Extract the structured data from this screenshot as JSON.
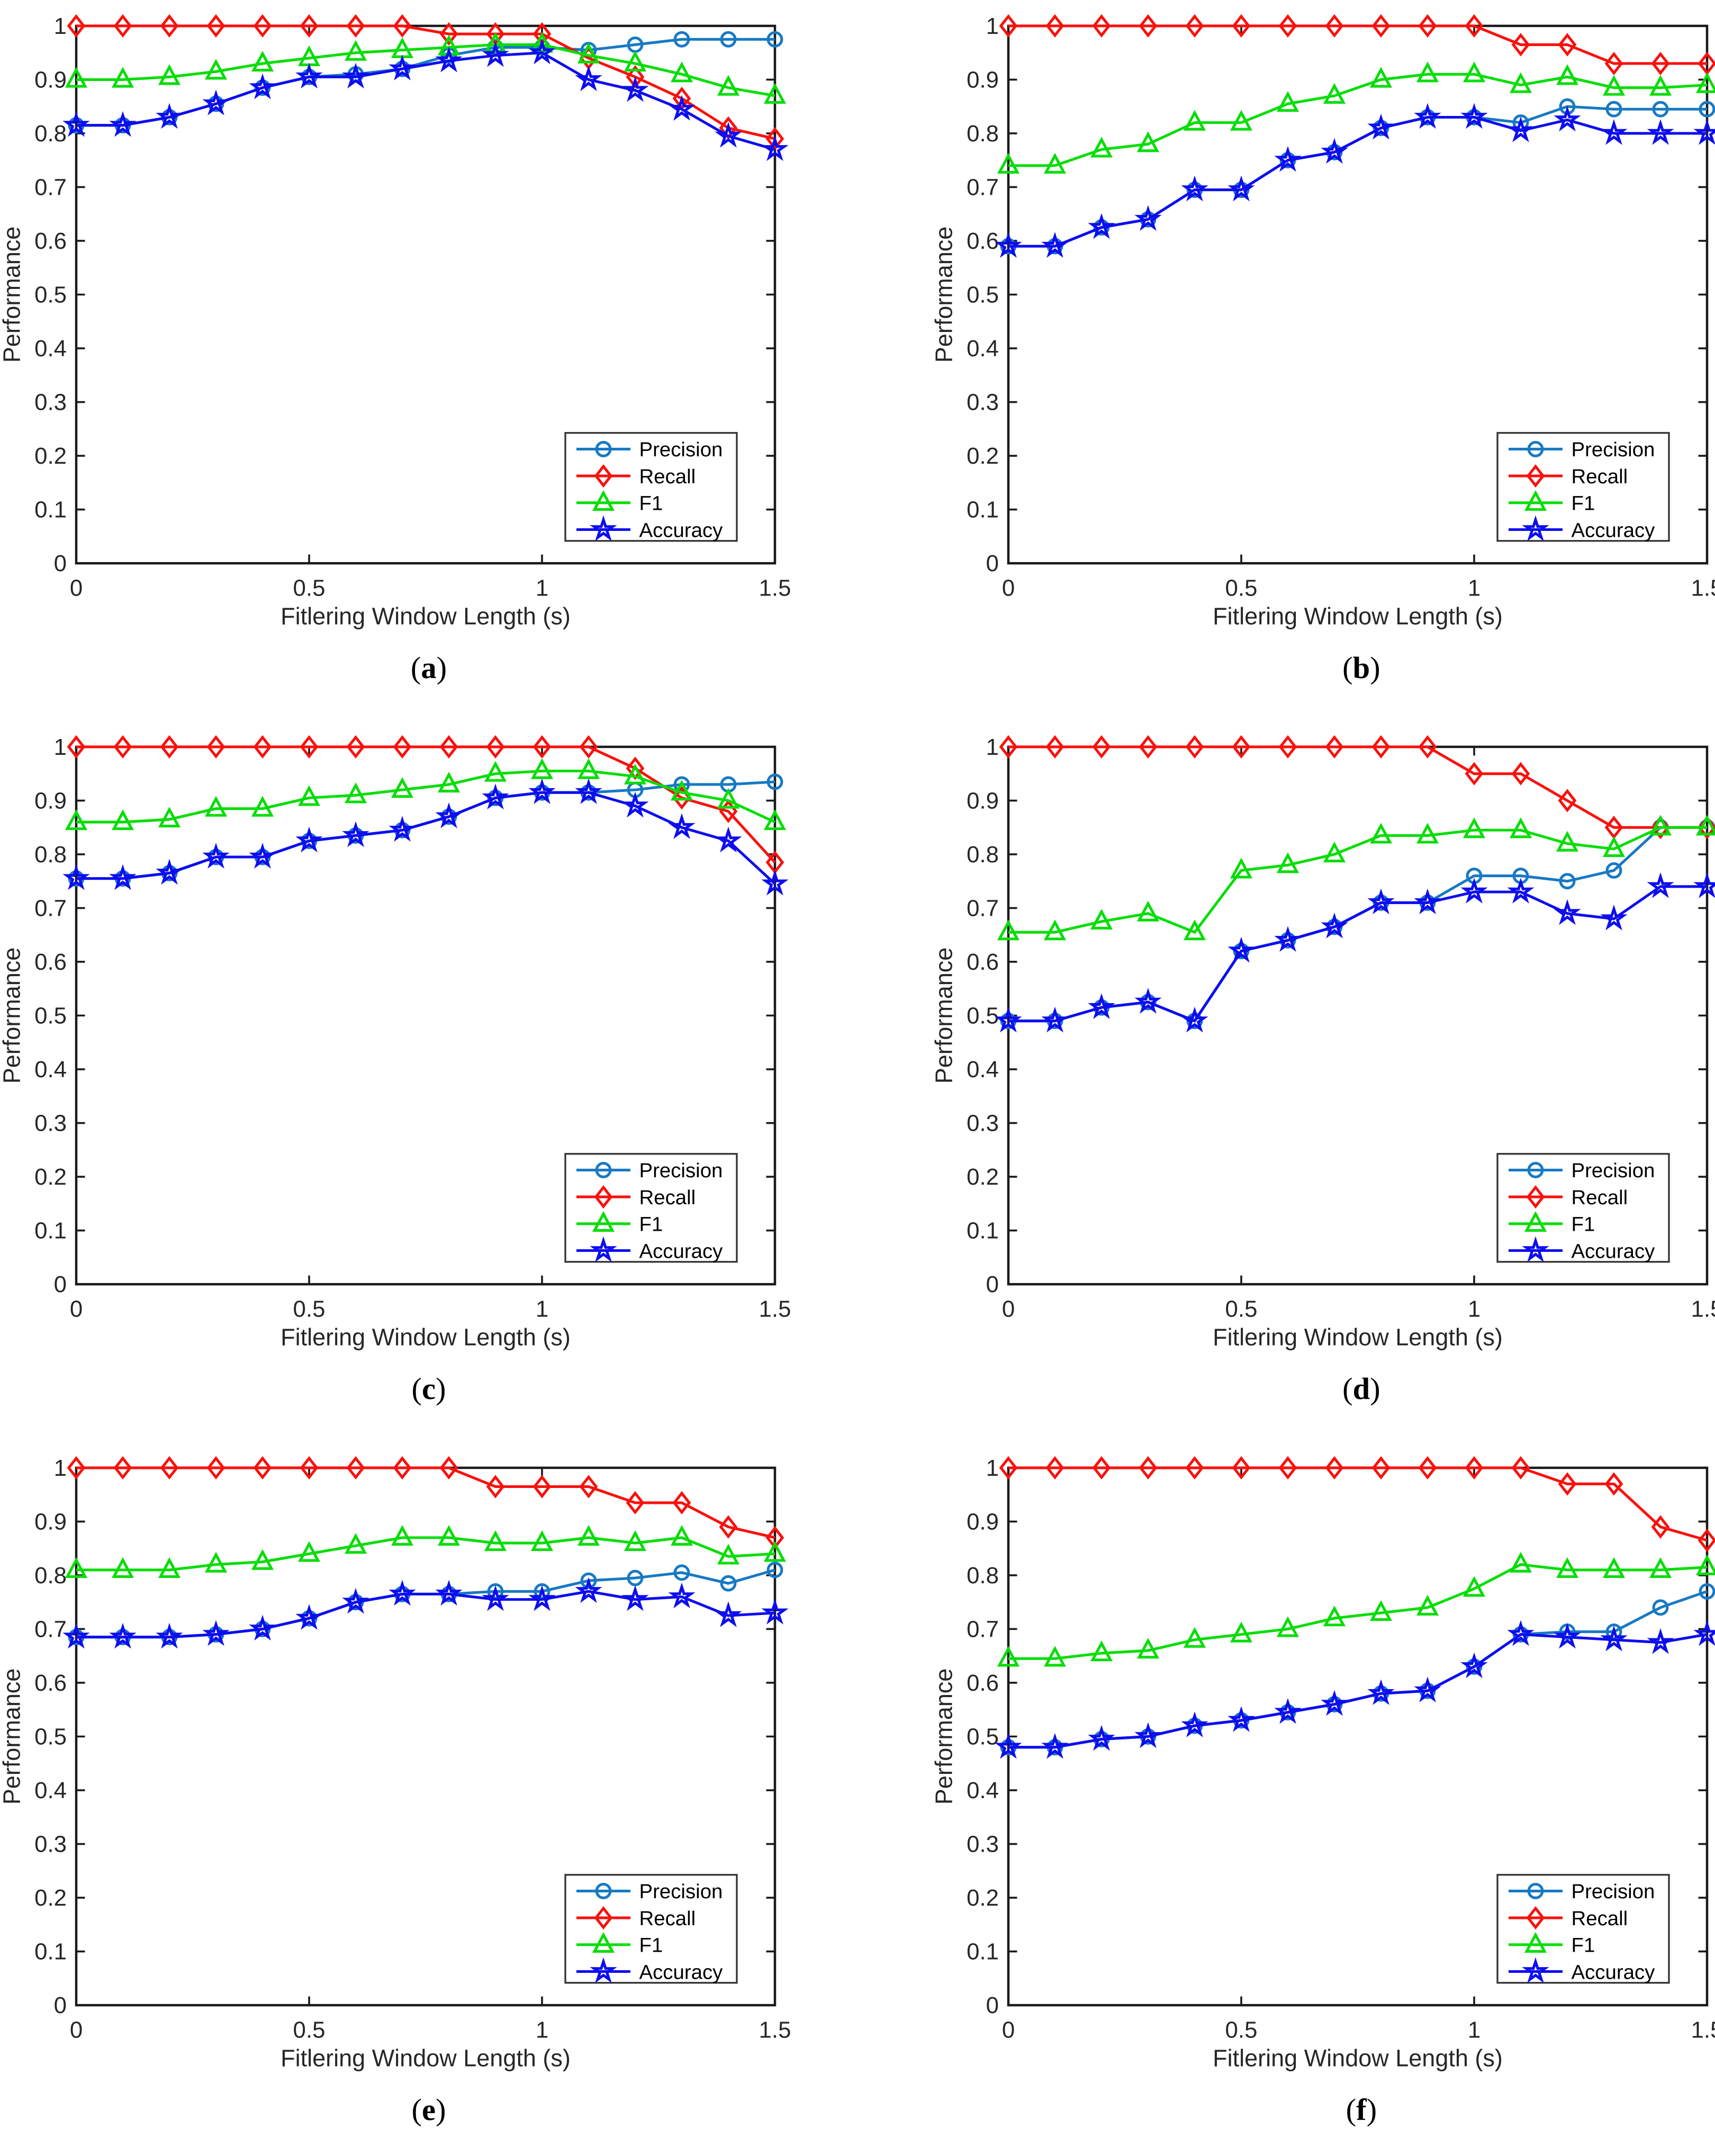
{
  "figure": {
    "background": "#ffffff",
    "axis_color": "#1a1a1a",
    "tick_label_color": "#262626"
  },
  "axes": {
    "xlabel": "Fitlering Window Length (s)",
    "ylabel": "Performance",
    "xlim": [
      0,
      1.5
    ],
    "ylim": [
      0,
      1
    ],
    "x_tick_values": [
      0,
      0.5,
      1,
      1.5
    ],
    "x_tick_labels": [
      "0",
      "0.5",
      "1",
      "1.5"
    ],
    "y_tick_labels": [
      "0",
      "0.1",
      "0.2",
      "0.3",
      "0.4",
      "0.5",
      "0.6",
      "0.7",
      "0.8",
      "0.9",
      "1"
    ],
    "grid": false,
    "legend_position": "bottom-right"
  },
  "series_defs": [
    {
      "name": "Precision",
      "color": "#1779c4",
      "marker": "circle"
    },
    {
      "name": "Recall",
      "color": "#fa100c",
      "marker": "diamond"
    },
    {
      "name": "F1",
      "color": "#06dd06",
      "marker": "triangle"
    },
    {
      "name": "Accuracy",
      "color": "#0d0df0",
      "marker": "star"
    }
  ],
  "chart_data": [
    {
      "type": "line",
      "caption": {
        "open": "(",
        "letter": "a",
        "close": ")"
      },
      "x": [
        0,
        0.1,
        0.2,
        0.3,
        0.4,
        0.5,
        0.6,
        0.7,
        0.8,
        0.9,
        1.0,
        1.1,
        1.2,
        1.3,
        1.4,
        1.5
      ],
      "series": [
        {
          "name": "Precision",
          "values": [
            0.815,
            0.815,
            0.83,
            0.855,
            0.885,
            0.905,
            0.91,
            0.92,
            0.945,
            0.96,
            0.96,
            0.955,
            0.965,
            0.975,
            0.975,
            0.975
          ]
        },
        {
          "name": "Recall",
          "values": [
            1,
            1,
            1,
            1,
            1,
            1,
            1,
            1,
            0.985,
            0.985,
            0.985,
            0.94,
            0.905,
            0.865,
            0.81,
            0.79
          ]
        },
        {
          "name": "F1",
          "values": [
            0.9,
            0.9,
            0.905,
            0.915,
            0.93,
            0.94,
            0.95,
            0.955,
            0.96,
            0.965,
            0.965,
            0.945,
            0.93,
            0.91,
            0.885,
            0.87
          ]
        },
        {
          "name": "Accuracy",
          "values": [
            0.815,
            0.815,
            0.83,
            0.855,
            0.885,
            0.905,
            0.905,
            0.92,
            0.935,
            0.945,
            0.95,
            0.9,
            0.88,
            0.845,
            0.795,
            0.77
          ]
        }
      ]
    },
    {
      "type": "line",
      "caption": {
        "open": "(",
        "letter": "b",
        "close": ")"
      },
      "x": [
        0,
        0.1,
        0.2,
        0.3,
        0.4,
        0.5,
        0.6,
        0.7,
        0.8,
        0.9,
        1.0,
        1.1,
        1.2,
        1.3,
        1.4,
        1.5
      ],
      "series": [
        {
          "name": "Precision",
          "values": [
            0.59,
            0.59,
            0.625,
            0.64,
            0.695,
            0.695,
            0.75,
            0.765,
            0.81,
            0.83,
            0.83,
            0.82,
            0.85,
            0.845,
            0.845,
            0.845
          ]
        },
        {
          "name": "Recall",
          "values": [
            1,
            1,
            1,
            1,
            1,
            1,
            1,
            1,
            1,
            1,
            1,
            0.965,
            0.965,
            0.93,
            0.93,
            0.93
          ]
        },
        {
          "name": "F1",
          "values": [
            0.74,
            0.74,
            0.77,
            0.78,
            0.82,
            0.82,
            0.855,
            0.87,
            0.9,
            0.91,
            0.91,
            0.89,
            0.905,
            0.885,
            0.885,
            0.89
          ]
        },
        {
          "name": "Accuracy",
          "values": [
            0.59,
            0.59,
            0.625,
            0.64,
            0.695,
            0.695,
            0.75,
            0.765,
            0.81,
            0.83,
            0.83,
            0.805,
            0.825,
            0.8,
            0.8,
            0.8
          ]
        }
      ]
    },
    {
      "type": "line",
      "caption": {
        "open": "(",
        "letter": "c",
        "close": ")"
      },
      "x": [
        0,
        0.1,
        0.2,
        0.3,
        0.4,
        0.5,
        0.6,
        0.7,
        0.8,
        0.9,
        1.0,
        1.1,
        1.2,
        1.3,
        1.4,
        1.5
      ],
      "series": [
        {
          "name": "Precision",
          "values": [
            0.755,
            0.755,
            0.765,
            0.795,
            0.795,
            0.825,
            0.835,
            0.845,
            0.87,
            0.905,
            0.915,
            0.915,
            0.92,
            0.93,
            0.93,
            0.935
          ]
        },
        {
          "name": "Recall",
          "values": [
            1,
            1,
            1,
            1,
            1,
            1,
            1,
            1,
            1,
            1,
            1,
            1,
            0.96,
            0.905,
            0.88,
            0.785
          ]
        },
        {
          "name": "F1",
          "values": [
            0.86,
            0.86,
            0.865,
            0.885,
            0.885,
            0.905,
            0.91,
            0.92,
            0.93,
            0.95,
            0.955,
            0.955,
            0.945,
            0.915,
            0.9,
            0.86
          ]
        },
        {
          "name": "Accuracy",
          "values": [
            0.755,
            0.755,
            0.765,
            0.795,
            0.795,
            0.825,
            0.835,
            0.845,
            0.87,
            0.905,
            0.915,
            0.915,
            0.89,
            0.85,
            0.825,
            0.745
          ]
        }
      ]
    },
    {
      "type": "line",
      "caption": {
        "open": "(",
        "letter": "d",
        "close": ")"
      },
      "x": [
        0,
        0.1,
        0.2,
        0.3,
        0.4,
        0.5,
        0.6,
        0.7,
        0.8,
        0.9,
        1.0,
        1.1,
        1.2,
        1.3,
        1.4,
        1.5
      ],
      "series": [
        {
          "name": "Precision",
          "values": [
            0.49,
            0.49,
            0.515,
            0.525,
            0.49,
            0.62,
            0.64,
            0.665,
            0.71,
            0.71,
            0.76,
            0.76,
            0.75,
            0.77,
            0.85,
            0.85
          ]
        },
        {
          "name": "Recall",
          "values": [
            1,
            1,
            1,
            1,
            1,
            1,
            1,
            1,
            1,
            1,
            0.95,
            0.95,
            0.9,
            0.85,
            0.85,
            0.85
          ]
        },
        {
          "name": "F1",
          "values": [
            0.655,
            0.655,
            0.675,
            0.69,
            0.655,
            0.77,
            0.78,
            0.8,
            0.835,
            0.835,
            0.845,
            0.845,
            0.82,
            0.81,
            0.85,
            0.85
          ]
        },
        {
          "name": "Accuracy",
          "values": [
            0.49,
            0.49,
            0.515,
            0.525,
            0.49,
            0.62,
            0.64,
            0.665,
            0.71,
            0.71,
            0.73,
            0.73,
            0.69,
            0.68,
            0.74,
            0.74
          ]
        }
      ]
    },
    {
      "type": "line",
      "caption": {
        "open": "(",
        "letter": "e",
        "close": ")"
      },
      "x": [
        0,
        0.1,
        0.2,
        0.3,
        0.4,
        0.5,
        0.6,
        0.7,
        0.8,
        0.9,
        1.0,
        1.1,
        1.2,
        1.3,
        1.4,
        1.5
      ],
      "series": [
        {
          "name": "Precision",
          "values": [
            0.685,
            0.685,
            0.685,
            0.69,
            0.7,
            0.72,
            0.75,
            0.765,
            0.765,
            0.77,
            0.77,
            0.79,
            0.795,
            0.805,
            0.785,
            0.81
          ]
        },
        {
          "name": "Recall",
          "values": [
            1,
            1,
            1,
            1,
            1,
            1,
            1,
            1,
            1,
            0.965,
            0.965,
            0.965,
            0.935,
            0.935,
            0.89,
            0.87
          ]
        },
        {
          "name": "F1",
          "values": [
            0.81,
            0.81,
            0.81,
            0.82,
            0.825,
            0.84,
            0.855,
            0.87,
            0.87,
            0.86,
            0.86,
            0.87,
            0.86,
            0.87,
            0.835,
            0.84
          ]
        },
        {
          "name": "Accuracy",
          "values": [
            0.685,
            0.685,
            0.685,
            0.69,
            0.7,
            0.72,
            0.75,
            0.765,
            0.765,
            0.755,
            0.755,
            0.77,
            0.755,
            0.76,
            0.725,
            0.73
          ]
        }
      ]
    },
    {
      "type": "line",
      "caption": {
        "open": "(",
        "letter": "f",
        "close": ")"
      },
      "x": [
        0,
        0.1,
        0.2,
        0.3,
        0.4,
        0.5,
        0.6,
        0.7,
        0.8,
        0.9,
        1.0,
        1.1,
        1.2,
        1.3,
        1.4,
        1.5
      ],
      "series": [
        {
          "name": "Precision",
          "values": [
            0.48,
            0.48,
            0.495,
            0.5,
            0.52,
            0.53,
            0.545,
            0.56,
            0.58,
            0.585,
            0.63,
            0.69,
            0.695,
            0.695,
            0.74,
            0.77
          ]
        },
        {
          "name": "Recall",
          "values": [
            1,
            1,
            1,
            1,
            1,
            1,
            1,
            1,
            1,
            1,
            1,
            1,
            0.97,
            0.97,
            0.89,
            0.865
          ]
        },
        {
          "name": "F1",
          "values": [
            0.645,
            0.645,
            0.655,
            0.66,
            0.68,
            0.69,
            0.7,
            0.72,
            0.73,
            0.74,
            0.775,
            0.82,
            0.81,
            0.81,
            0.81,
            0.815
          ]
        },
        {
          "name": "Accuracy",
          "values": [
            0.48,
            0.48,
            0.495,
            0.5,
            0.52,
            0.53,
            0.545,
            0.56,
            0.58,
            0.585,
            0.63,
            0.69,
            0.685,
            0.68,
            0.675,
            0.69
          ]
        }
      ]
    }
  ]
}
